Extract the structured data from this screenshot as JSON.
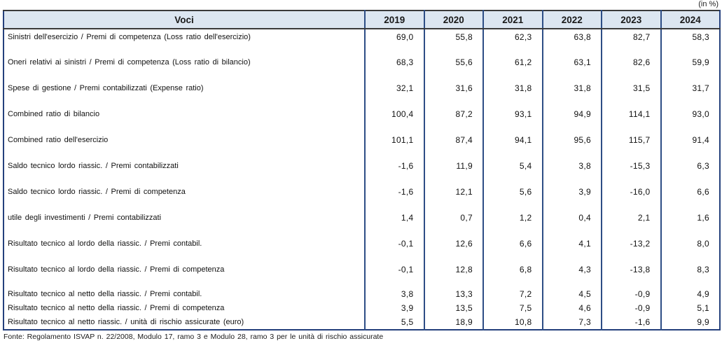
{
  "table": {
    "unit_note": "(in %)",
    "header": {
      "label_column": "Voci",
      "years": [
        "2019",
        "2020",
        "2021",
        "2022",
        "2023",
        "2024"
      ]
    },
    "rows": [
      {
        "label": "Sinistri dell'esercizio / Premi di competenza (Loss ratio dell'esercizio)",
        "values": [
          "69,0",
          "55,8",
          "62,3",
          "63,8",
          "82,7",
          "58,3"
        ]
      },
      {
        "label": "Oneri relativi ai sinistri / Premi di competenza (Loss ratio di bilancio)",
        "values": [
          "68,3",
          "55,6",
          "61,2",
          "63,1",
          "82,6",
          "59,9"
        ]
      },
      {
        "label": "Spese di gestione / Premi contabilizzati (Expense ratio)",
        "values": [
          "32,1",
          "31,6",
          "31,8",
          "31,8",
          "31,5",
          "31,7"
        ]
      },
      {
        "label": "Combined ratio di bilancio",
        "values": [
          "100,4",
          "87,2",
          "93,1",
          "94,9",
          "114,1",
          "93,0"
        ]
      },
      {
        "label": "Combined ratio dell'esercizio",
        "values": [
          "101,1",
          "87,4",
          "94,1",
          "95,6",
          "115,7",
          "91,4"
        ]
      },
      {
        "label": "Saldo tecnico lordo riassic. / Premi contabilizzati",
        "values": [
          "-1,6",
          "11,9",
          "5,4",
          "3,8",
          "-15,3",
          "6,3"
        ]
      },
      {
        "label": "Saldo tecnico lordo riassic. / Premi di competenza",
        "values": [
          "-1,6",
          "12,1",
          "5,6",
          "3,9",
          "-16,0",
          "6,6"
        ]
      },
      {
        "label": "utile degli investimenti / Premi contabilizzati",
        "values": [
          "1,4",
          "0,7",
          "1,2",
          "0,4",
          "2,1",
          "1,6"
        ]
      },
      {
        "label": "Risultato tecnico al lordo della riassic. / Premi contabil.",
        "values": [
          "-0,1",
          "12,6",
          "6,6",
          "4,1",
          "-13,2",
          "8,0"
        ]
      },
      {
        "label": "Risultato tecnico al lordo della riassic. / Premi di competenza",
        "values": [
          "-0,1",
          "12,8",
          "6,8",
          "4,3",
          "-13,8",
          "8,3"
        ]
      },
      {
        "label": "Risultato tecnico al netto della riassic. / Premi contabil.",
        "values": [
          "3,8",
          "13,3",
          "7,2",
          "4,5",
          "-0,9",
          "4,9"
        ]
      },
      {
        "label": "Risultato tecnico al netto della riassic. / Premi di competenza",
        "values": [
          "3,9",
          "13,5",
          "7,5",
          "4,6",
          "-0,9",
          "5,1"
        ]
      },
      {
        "label": "Risultato tecnico al netto riassic. / unità di rischio assicurate (euro)",
        "values": [
          "5,5",
          "18,9",
          "10,8",
          "7,3",
          "-1,6",
          "9,9"
        ]
      }
    ],
    "source": "Fonte: Regolamento ISVAP n. 22/2008, Modulo 17, ramo 3 e Modulo 28, ramo 3 per le unità di rischio assicurate",
    "colors": {
      "header_bg": "#dce6f1",
      "border_navy": "#24407c",
      "border_dark": "#3a3a3a"
    }
  }
}
